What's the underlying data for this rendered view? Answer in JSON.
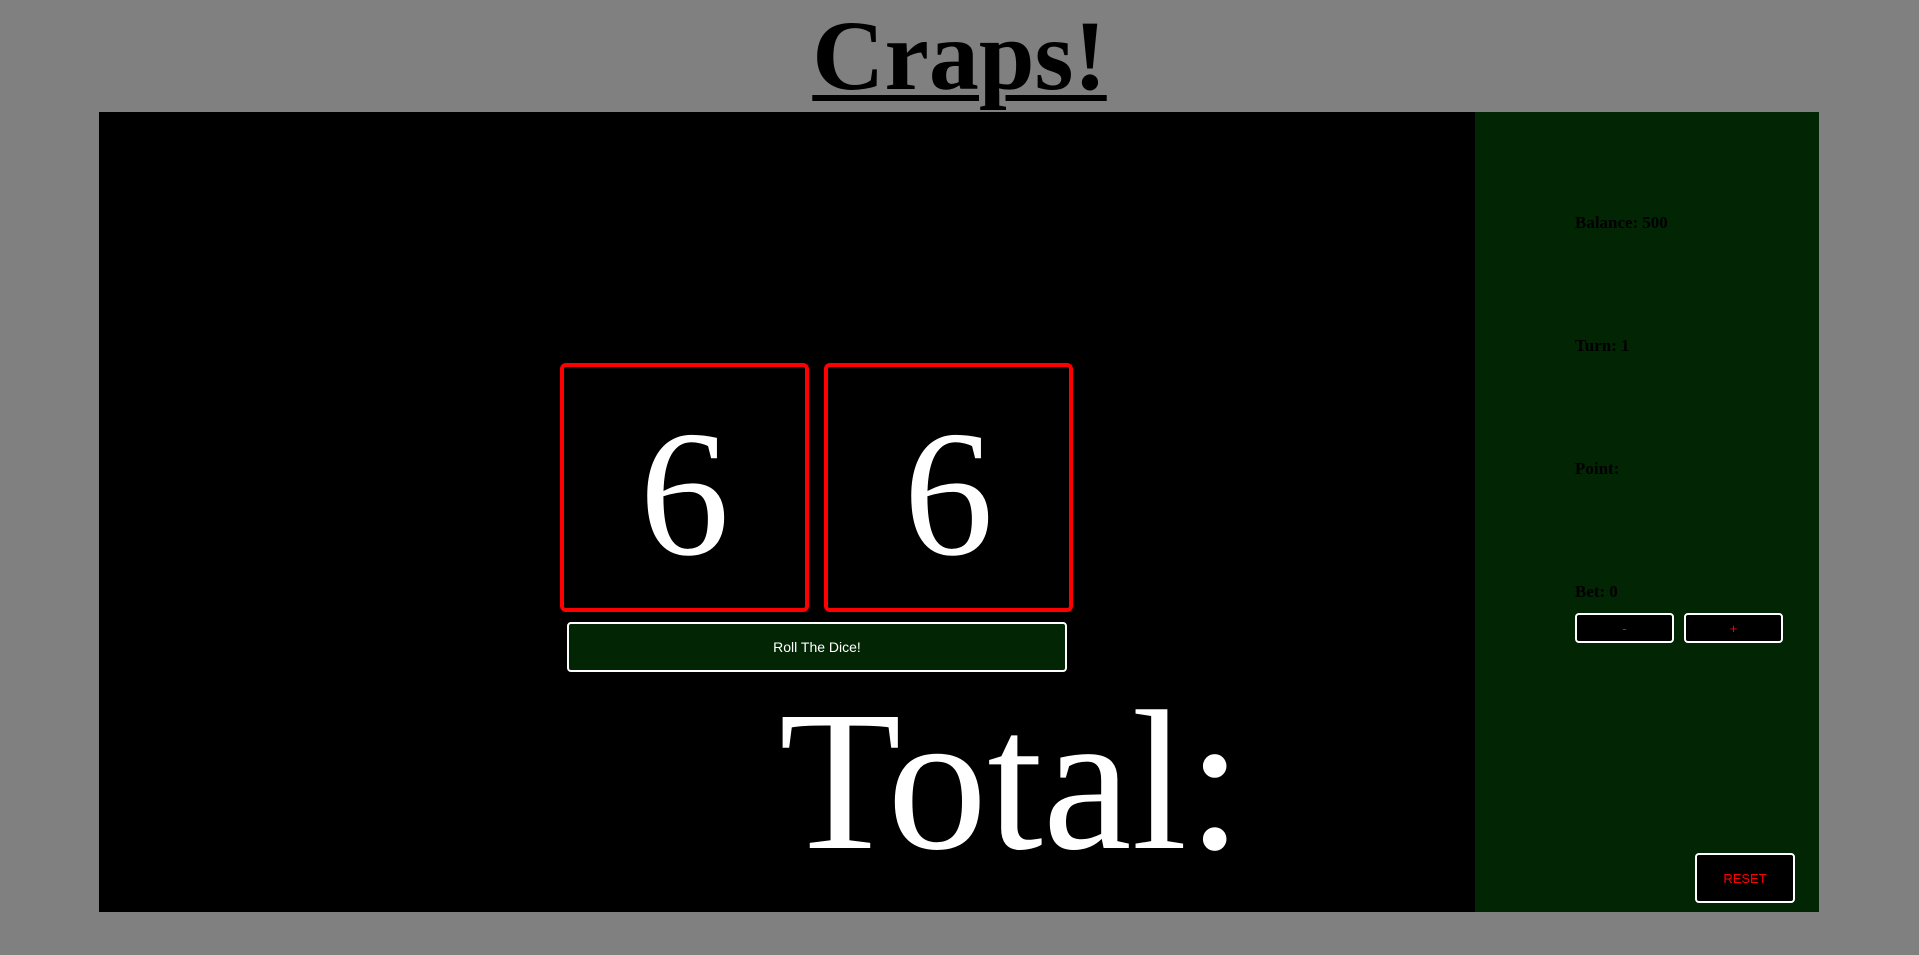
{
  "title": "Craps!",
  "dice": [
    {
      "value": "6"
    },
    {
      "value": "6"
    }
  ],
  "roll_button": "Roll The Dice!",
  "total": {
    "label": "Total:",
    "value": ""
  },
  "stats": {
    "balance_label": "Balance:",
    "balance": "500",
    "turn_label": "Turn:",
    "turn": "1",
    "point_label": "Point:",
    "point": "",
    "bet_label": "Bet:",
    "bet": "0"
  },
  "bet_controls": {
    "minus": "-",
    "plus": "+"
  },
  "reset_button": "RESET",
  "colors": {
    "page_background": "#808080",
    "table_background": "#000000",
    "sidebar_background": "#022503",
    "die_border": "#ff0000",
    "button_text": "#ff0000"
  }
}
